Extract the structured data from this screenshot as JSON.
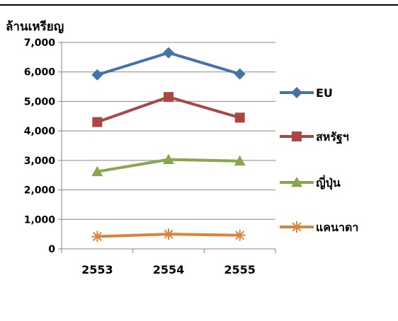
{
  "chart_data": {
    "type": "line",
    "ylabel": "ล้านเหรียญ",
    "categories": [
      "2553",
      "2554",
      "2555"
    ],
    "ylim": [
      0,
      7000
    ],
    "yticks": [
      "0",
      "1,000",
      "2,000",
      "3,000",
      "4,000",
      "5,000",
      "6,000",
      "7,000"
    ],
    "grid": true,
    "legend": "right",
    "series": [
      {
        "name": "EU",
        "values": [
          5900,
          6650,
          5930
        ],
        "color": "#4572A7",
        "marker": "diamond"
      },
      {
        "name": "สหรัฐฯ",
        "values": [
          4300,
          5150,
          4450
        ],
        "color": "#AA4643",
        "marker": "square"
      },
      {
        "name": "ญี่ปุ่น",
        "values": [
          2620,
          3030,
          2980
        ],
        "color": "#89A54E",
        "marker": "triangle"
      },
      {
        "name": "แคนาดา",
        "values": [
          420,
          500,
          460
        ],
        "color": "#DB843D",
        "marker": "star"
      }
    ]
  }
}
